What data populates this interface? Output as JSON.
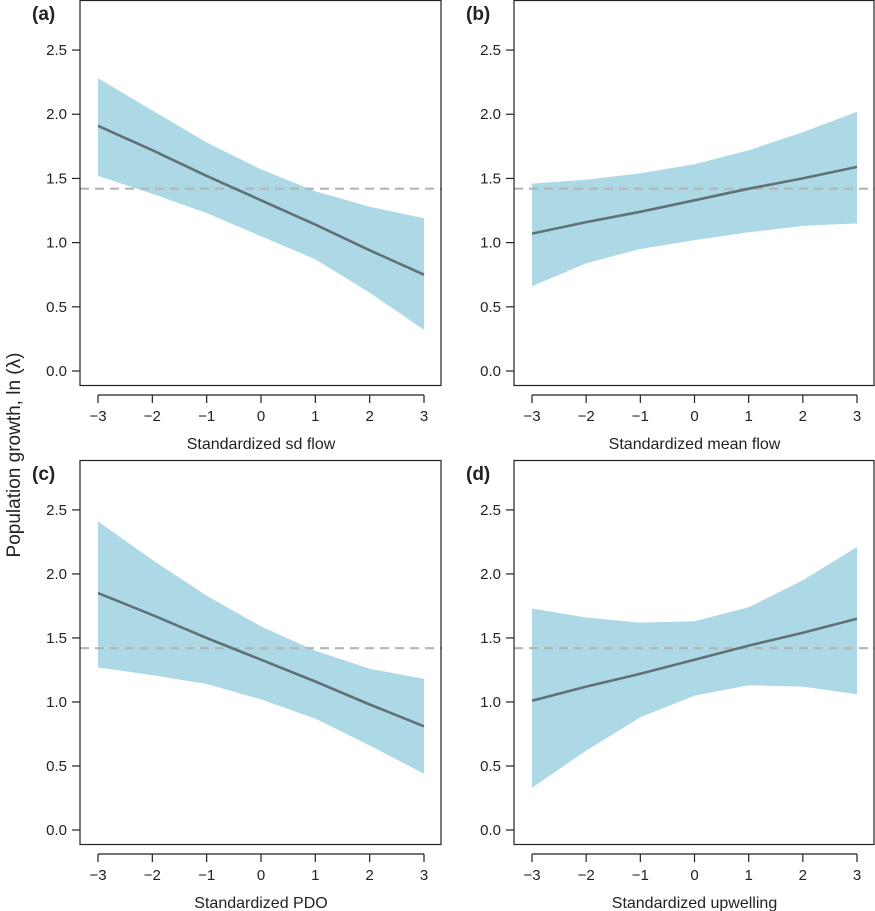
{
  "figure": {
    "ylabel": "Population growth, ln (λ)",
    "colors": {
      "band": "#add8e6",
      "line": "#5f7278",
      "reference": "#b5b5b5",
      "axis": "#222222"
    }
  },
  "chart_data": [
    {
      "panel_label": "(a)",
      "type": "line",
      "xlabel": "Standardized sd flow",
      "xlim": [
        -3,
        3
      ],
      "ylim": [
        0,
        2.5
      ],
      "xticks": [
        "−3",
        "−2",
        "−1",
        "0",
        "1",
        "2",
        "3"
      ],
      "yticks": [
        "0.0",
        "0.5",
        "1.0",
        "1.5",
        "2.0",
        "2.5"
      ],
      "reference_line": 1.42,
      "grid": false,
      "x": [
        -3,
        -2,
        -1,
        0,
        1,
        2,
        3
      ],
      "fit": [
        1.91,
        1.72,
        1.52,
        1.33,
        1.14,
        0.94,
        0.75
      ],
      "band_upper": [
        2.28,
        2.03,
        1.78,
        1.57,
        1.4,
        1.28,
        1.19
      ],
      "band_lower": [
        1.52,
        1.38,
        1.23,
        1.05,
        0.87,
        0.61,
        0.32
      ]
    },
    {
      "panel_label": "(b)",
      "type": "line",
      "xlabel": "Standardized mean flow",
      "xlim": [
        -3,
        3
      ],
      "ylim": [
        0,
        2.5
      ],
      "xticks": [
        "−3",
        "−2",
        "−1",
        "0",
        "1",
        "2",
        "3"
      ],
      "yticks": [
        "0.0",
        "0.5",
        "1.0",
        "1.5",
        "2.0",
        "2.5"
      ],
      "reference_line": 1.42,
      "grid": false,
      "x": [
        -3,
        -2,
        -1,
        0,
        1,
        2,
        3
      ],
      "fit": [
        1.07,
        1.16,
        1.24,
        1.33,
        1.42,
        1.5,
        1.59
      ],
      "band_upper": [
        1.46,
        1.49,
        1.54,
        1.61,
        1.72,
        1.86,
        2.02
      ],
      "band_lower": [
        0.66,
        0.84,
        0.95,
        1.02,
        1.08,
        1.13,
        1.15
      ]
    },
    {
      "panel_label": "(c)",
      "type": "line",
      "xlabel": "Standardized PDO",
      "xlim": [
        -3,
        3
      ],
      "ylim": [
        0,
        2.5
      ],
      "xticks": [
        "−3",
        "−2",
        "−1",
        "0",
        "1",
        "2",
        "3"
      ],
      "yticks": [
        "0.0",
        "0.5",
        "1.0",
        "1.5",
        "2.0",
        "2.5"
      ],
      "reference_line": 1.42,
      "grid": false,
      "x": [
        -3,
        -2,
        -1,
        0,
        1,
        2,
        3
      ],
      "fit": [
        1.85,
        1.68,
        1.5,
        1.33,
        1.16,
        0.98,
        0.81
      ],
      "band_upper": [
        2.41,
        2.11,
        1.83,
        1.59,
        1.4,
        1.26,
        1.18
      ],
      "band_lower": [
        1.27,
        1.21,
        1.14,
        1.02,
        0.87,
        0.66,
        0.44
      ]
    },
    {
      "panel_label": "(d)",
      "type": "line",
      "xlabel": "Standardized upwelling",
      "xlim": [
        -3,
        3
      ],
      "ylim": [
        0,
        2.5
      ],
      "xticks": [
        "−3",
        "−2",
        "−1",
        "0",
        "1",
        "2",
        "3"
      ],
      "yticks": [
        "0.0",
        "0.5",
        "1.0",
        "1.5",
        "2.0",
        "2.5"
      ],
      "reference_line": 1.42,
      "grid": false,
      "x": [
        -3,
        -2,
        -1,
        0,
        1,
        2,
        3
      ],
      "fit": [
        1.01,
        1.12,
        1.22,
        1.33,
        1.44,
        1.54,
        1.65
      ],
      "band_upper": [
        1.73,
        1.66,
        1.62,
        1.63,
        1.74,
        1.95,
        2.21
      ],
      "band_lower": [
        0.33,
        0.62,
        0.88,
        1.05,
        1.13,
        1.12,
        1.06
      ]
    }
  ]
}
